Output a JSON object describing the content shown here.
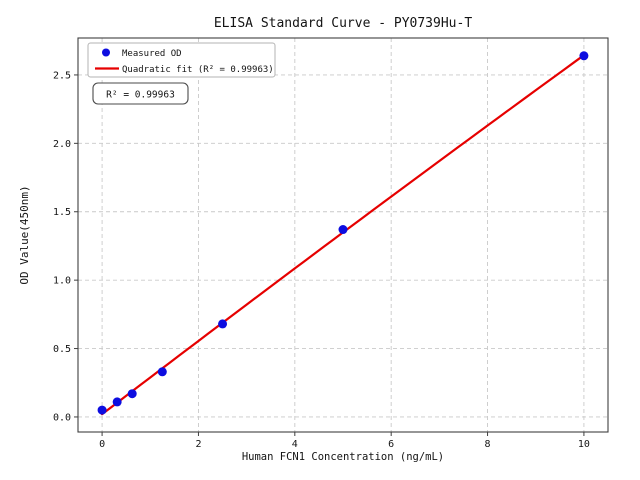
{
  "chart_data": {
    "type": "scatter",
    "title": "ELISA Standard Curve - PY0739Hu-T",
    "xlabel": "Human FCN1 Concentration (ng/mL)",
    "ylabel": "OD Value(450nm)",
    "x": [
      0,
      0.313,
      0.625,
      1.25,
      2.5,
      5,
      10
    ],
    "y": [
      0.05,
      0.11,
      0.17,
      0.33,
      0.68,
      1.37,
      2.64
    ],
    "series": [
      {
        "name": "Measured OD",
        "type": "scatter",
        "color": "#0d0de0"
      },
      {
        "name": "Quadratic fit (R² = 0.99963)",
        "type": "line",
        "fit": "quadratic",
        "color": "#e60000"
      }
    ],
    "r_squared": 0.99963,
    "annotation": "R² = 0.99963",
    "xlim": [
      -0.5,
      10.5
    ],
    "ylim": [
      -0.11,
      2.77
    ],
    "xticks": [
      0,
      2,
      4,
      6,
      8,
      10
    ],
    "xtick_labels": [
      "0",
      "2",
      "4",
      "6",
      "8",
      "10"
    ],
    "yticks": [
      0.0,
      0.5,
      1.0,
      1.5,
      2.0,
      2.5
    ],
    "ytick_labels": [
      "0.0",
      "0.5",
      "1.0",
      "1.5",
      "2.0",
      "2.5"
    ],
    "grid": true,
    "grid_style": "dashed",
    "legend_position": "upper left",
    "colors": {
      "marker": "#0d0de0",
      "fit_line": "#e60000",
      "grid": "#c9c9c9",
      "spine": "#3f3f3f",
      "text": "#141414",
      "legend_border": "#b3b3b3",
      "annotation_border": "#4a4a4a",
      "background": "#ffffff"
    }
  }
}
